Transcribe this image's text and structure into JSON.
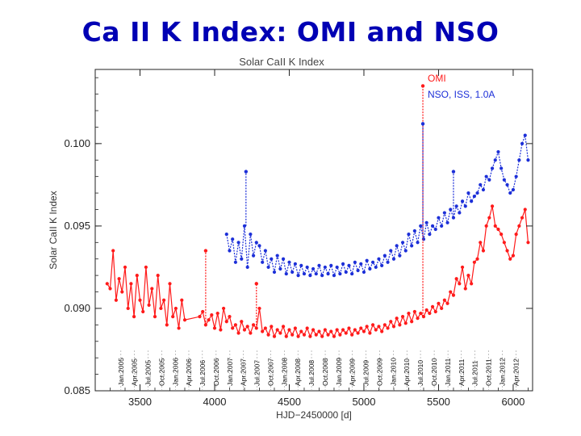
{
  "slide": {
    "title": "Ca II K Index:  OMI and NSO"
  },
  "chart_data": {
    "type": "line",
    "title": "Solar CaII K Index",
    "xlabel": "HJD−2450000 [d]",
    "ylabel": "Solar CaII K Index",
    "xlim": [
      3200,
      6130
    ],
    "ylim": [
      0.085,
      0.1045
    ],
    "xticks": [
      3500,
      4000,
      4500,
      5000,
      5500,
      6000
    ],
    "xtick_labels": [
      "3500",
      "4000",
      "4500",
      "5000",
      "5500",
      "6000"
    ],
    "yticks": [
      0.085,
      0.09,
      0.095,
      0.1
    ],
    "ytick_labels": [
      "0.085",
      "0.090",
      "0.095",
      "0.100"
    ],
    "date_annotations": [
      {
        "label": "Jan.2005",
        "x": 3372
      },
      {
        "label": "Apr.2005",
        "x": 3462
      },
      {
        "label": "Jul.2005",
        "x": 3553
      },
      {
        "label": "Oct.2005",
        "x": 3645
      },
      {
        "label": "Jan.2006",
        "x": 3737
      },
      {
        "label": "Apr.2006",
        "x": 3827
      },
      {
        "label": "Jul.2006",
        "x": 3918
      },
      {
        "label": "Oct.2006",
        "x": 4010
      },
      {
        "label": "Jan.2007",
        "x": 4102
      },
      {
        "label": "Apr.2007",
        "x": 4192
      },
      {
        "label": "Jul.2007",
        "x": 4283
      },
      {
        "label": "Oct.2007",
        "x": 4375
      },
      {
        "label": "Jan.2008",
        "x": 4467
      },
      {
        "label": "Apr.2008",
        "x": 4558
      },
      {
        "label": "Jul.2008",
        "x": 4649
      },
      {
        "label": "Oct.2008",
        "x": 4741
      },
      {
        "label": "Jan.2009",
        "x": 4833
      },
      {
        "label": "Apr.2009",
        "x": 4923
      },
      {
        "label": "Jul.2009",
        "x": 5014
      },
      {
        "label": "Oct.2009",
        "x": 5106
      },
      {
        "label": "Jan.2010",
        "x": 5198
      },
      {
        "label": "Apr.2010",
        "x": 5288
      },
      {
        "label": "Jul.2010",
        "x": 5379
      },
      {
        "label": "Oct.2010",
        "x": 5471
      },
      {
        "label": "Jan.2011",
        "x": 5563
      },
      {
        "label": "Apr.2011",
        "x": 5653
      },
      {
        "label": "Jul.2011",
        "x": 5744
      },
      {
        "label": "Oct.2011",
        "x": 5836
      },
      {
        "label": "Jan.2012",
        "x": 5928
      },
      {
        "label": "Apr.2012",
        "x": 6019
      }
    ],
    "series": [
      {
        "name": "OMI",
        "color": "#ff1a1a",
        "x": [
          3280,
          3300,
          3320,
          3340,
          3360,
          3380,
          3400,
          3420,
          3440,
          3460,
          3480,
          3500,
          3520,
          3540,
          3560,
          3580,
          3600,
          3620,
          3640,
          3660,
          3680,
          3700,
          3720,
          3740,
          3760,
          3780,
          3800,
          3900,
          3920,
          3940,
          3960,
          3980,
          4000,
          4020,
          4040,
          4060,
          4080,
          4100,
          4120,
          4140,
          4160,
          4180,
          4200,
          4220,
          4240,
          4260,
          4280,
          4300,
          4320,
          4340,
          4360,
          4380,
          4400,
          4420,
          4440,
          4460,
          4480,
          4500,
          4520,
          4540,
          4560,
          4580,
          4600,
          4620,
          4640,
          4660,
          4680,
          4700,
          4720,
          4740,
          4760,
          4780,
          4800,
          4820,
          4840,
          4860,
          4880,
          4900,
          4920,
          4940,
          4960,
          4980,
          5000,
          5020,
          5040,
          5060,
          5080,
          5100,
          5120,
          5140,
          5160,
          5180,
          5200,
          5220,
          5240,
          5260,
          5280,
          5300,
          5320,
          5340,
          5360,
          5380,
          5400,
          5420,
          5440,
          5460,
          5480,
          5500,
          5520,
          5540,
          5560,
          5580,
          5600,
          5620,
          5640,
          5660,
          5680,
          5700,
          5720,
          5740,
          5760,
          5780,
          5800,
          5820,
          5840,
          5860,
          5880,
          5900,
          5920,
          5940,
          5960,
          5980,
          6000,
          6020,
          6040,
          6060,
          6080,
          6100
        ],
        "y": [
          0.0915,
          0.0912,
          0.0935,
          0.0905,
          0.0918,
          0.091,
          0.0925,
          0.09,
          0.0915,
          0.0895,
          0.092,
          0.0905,
          0.0898,
          0.0925,
          0.0902,
          0.0912,
          0.0895,
          0.092,
          0.09,
          0.0905,
          0.089,
          0.0915,
          0.0895,
          0.09,
          0.0888,
          0.0905,
          0.0893,
          0.0895,
          0.0898,
          0.089,
          0.0893,
          0.0896,
          0.0888,
          0.0897,
          0.0887,
          0.09,
          0.0892,
          0.0895,
          0.0888,
          0.089,
          0.0885,
          0.0892,
          0.0887,
          0.0889,
          0.0885,
          0.089,
          0.0888,
          0.09,
          0.0886,
          0.0888,
          0.0884,
          0.0889,
          0.0883,
          0.0887,
          0.0885,
          0.0889,
          0.0883,
          0.0887,
          0.0884,
          0.0888,
          0.0883,
          0.0886,
          0.0884,
          0.0888,
          0.0883,
          0.0887,
          0.0884,
          0.0886,
          0.0883,
          0.0887,
          0.0884,
          0.0886,
          0.0883,
          0.0887,
          0.0884,
          0.0887,
          0.0885,
          0.0888,
          0.0884,
          0.0887,
          0.0885,
          0.0888,
          0.0886,
          0.0889,
          0.0885,
          0.089,
          0.0887,
          0.0889,
          0.0886,
          0.089,
          0.0888,
          0.0892,
          0.0889,
          0.0894,
          0.089,
          0.0895,
          0.0891,
          0.0897,
          0.0892,
          0.0898,
          0.0894,
          0.0897,
          0.0895,
          0.0899,
          0.0897,
          0.0901,
          0.0898,
          0.0903,
          0.09,
          0.0905,
          0.0903,
          0.091,
          0.0908,
          0.0918,
          0.0915,
          0.0925,
          0.0912,
          0.092,
          0.0915,
          0.0928,
          0.093,
          0.094,
          0.0935,
          0.095,
          0.0955,
          0.0962,
          0.095,
          0.0948,
          0.0945,
          0.094,
          0.0935,
          0.093,
          0.0932,
          0.0945,
          0.095,
          0.0955,
          0.096,
          0.094
        ]
      },
      {
        "name": "NSO, ISS, 1.0A",
        "color": "#1c2fd8",
        "x": [
          4080,
          4100,
          4120,
          4140,
          4160,
          4180,
          4200,
          4220,
          4240,
          4260,
          4280,
          4300,
          4320,
          4340,
          4360,
          4380,
          4400,
          4420,
          4440,
          4460,
          4480,
          4500,
          4520,
          4540,
          4560,
          4580,
          4600,
          4620,
          4640,
          4660,
          4680,
          4700,
          4720,
          4740,
          4760,
          4780,
          4800,
          4820,
          4840,
          4860,
          4880,
          4900,
          4920,
          4940,
          4960,
          4980,
          5000,
          5020,
          5040,
          5060,
          5080,
          5100,
          5120,
          5140,
          5160,
          5180,
          5200,
          5220,
          5240,
          5260,
          5280,
          5300,
          5320,
          5340,
          5360,
          5380,
          5400,
          5420,
          5440,
          5460,
          5480,
          5500,
          5520,
          5540,
          5560,
          5580,
          5600,
          5620,
          5640,
          5660,
          5680,
          5700,
          5720,
          5740,
          5760,
          5780,
          5800,
          5820,
          5840,
          5860,
          5880,
          5900,
          5920,
          5940,
          5960,
          5980,
          6000,
          6020,
          6040,
          6060,
          6080,
          6100
        ],
        "y": [
          0.0945,
          0.0935,
          0.0942,
          0.0928,
          0.094,
          0.093,
          0.095,
          0.0925,
          0.0945,
          0.0932,
          0.094,
          0.0938,
          0.0928,
          0.0935,
          0.0925,
          0.093,
          0.0922,
          0.0932,
          0.0924,
          0.093,
          0.0921,
          0.0928,
          0.0922,
          0.0927,
          0.092,
          0.0926,
          0.0921,
          0.0925,
          0.092,
          0.0924,
          0.0921,
          0.0926,
          0.092,
          0.0925,
          0.0921,
          0.0926,
          0.092,
          0.0925,
          0.0921,
          0.0927,
          0.0922,
          0.0926,
          0.0921,
          0.0928,
          0.0923,
          0.0927,
          0.0922,
          0.0929,
          0.0924,
          0.0928,
          0.0925,
          0.093,
          0.0926,
          0.0932,
          0.0928,
          0.0935,
          0.093,
          0.0938,
          0.0932,
          0.094,
          0.0935,
          0.0945,
          0.0938,
          0.0947,
          0.094,
          0.095,
          0.0942,
          0.0952,
          0.0945,
          0.095,
          0.0948,
          0.0955,
          0.095,
          0.0958,
          0.0952,
          0.096,
          0.0955,
          0.0962,
          0.0958,
          0.0965,
          0.0962,
          0.097,
          0.0965,
          0.0968,
          0.097,
          0.0975,
          0.0972,
          0.098,
          0.0978,
          0.0985,
          0.099,
          0.0995,
          0.0985,
          0.0978,
          0.0975,
          0.097,
          0.0972,
          0.098,
          0.099,
          0.1,
          0.1005,
          0.099
        ]
      }
    ],
    "spikes": [
      {
        "series": "OMI",
        "x": 3940,
        "y": 0.0935
      },
      {
        "series": "OMI",
        "x": 4280,
        "y": 0.0915
      },
      {
        "series": "OMI",
        "x": 5395,
        "y": 0.1035
      },
      {
        "series": "NSO, ISS, 1.0A",
        "x": 4210,
        "y": 0.0983
      },
      {
        "series": "NSO, ISS, 1.0A",
        "x": 5395,
        "y": 0.1012
      },
      {
        "series": "NSO, ISS, 1.0A",
        "x": 5600,
        "y": 0.0983
      }
    ],
    "legend": {
      "position": "top-right",
      "entries": [
        "OMI",
        "NSO, ISS, 1.0A"
      ]
    }
  }
}
